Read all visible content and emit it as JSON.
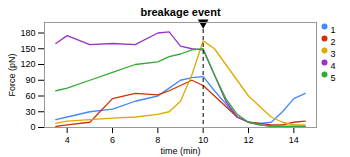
{
  "chart_data": {
    "type": "line",
    "title": "breakage event",
    "xlabel": "time (min)",
    "ylabel": "Force (pN)",
    "x": [
      3.5,
      4,
      5,
      6,
      7,
      8,
      8.5,
      9,
      9.5,
      10,
      10.5,
      11,
      11.5,
      12,
      12.5,
      13,
      13.5,
      14,
      14.5
    ],
    "series": [
      {
        "name": "1",
        "color": "#4488ff",
        "values": [
          15,
          20,
          30,
          35,
          50,
          60,
          75,
          90,
          95,
          97,
          70,
          45,
          20,
          10,
          8,
          10,
          30,
          55,
          65
        ]
      },
      {
        "name": "2",
        "color": "#cc3300",
        "values": [
          2,
          5,
          10,
          55,
          65,
          62,
          70,
          80,
          90,
          80,
          60,
          40,
          20,
          10,
          8,
          5,
          5,
          10,
          12
        ]
      },
      {
        "name": "3",
        "color": "#ddaa00",
        "values": [
          8,
          12,
          15,
          18,
          20,
          25,
          30,
          50,
          100,
          165,
          150,
          120,
          90,
          60,
          40,
          20,
          10,
          5,
          5
        ]
      },
      {
        "name": "4",
        "color": "#9933cc",
        "values": [
          160,
          175,
          158,
          160,
          158,
          180,
          182,
          155,
          150,
          148,
          100,
          50,
          20,
          10,
          5,
          3,
          2,
          2,
          2
        ]
      },
      {
        "name": "5",
        "color": "#33aa33",
        "values": [
          70,
          75,
          90,
          105,
          120,
          125,
          135,
          140,
          148,
          150,
          100,
          55,
          25,
          10,
          5,
          2,
          2,
          2,
          2
        ]
      }
    ],
    "xlim": [
      3,
      15
    ],
    "ylim": [
      0,
      200
    ],
    "xticks": [
      4,
      6,
      8,
      10,
      12,
      14
    ],
    "yticks": [
      0,
      30,
      60,
      90,
      120,
      150,
      180
    ],
    "legend": "upper right",
    "vline": {
      "x": 10,
      "color": "black",
      "line_style": "dashed",
      "marker": "triangle_down"
    }
  }
}
